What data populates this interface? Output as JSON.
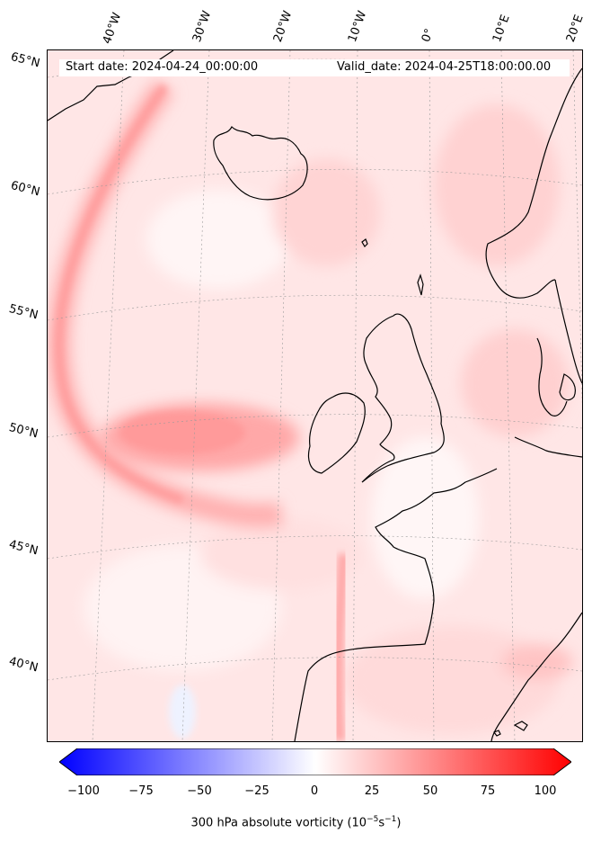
{
  "header": {
    "start_date": "Start date: 2024-04-24_00:00:00",
    "valid_date": "Valid_date: 2024-04-25T18:00:00.00"
  },
  "map": {
    "field": "300 hPa absolute vorticity",
    "longitude_labels": [
      "40°W",
      "30°W",
      "20°W",
      "10°W",
      "0°",
      "10°E",
      "20°E"
    ],
    "latitude_labels": [
      "65°N",
      "60°N",
      "55°N",
      "50°N",
      "45°N",
      "40°N"
    ],
    "colors": {
      "positive": "#ff0000",
      "negative": "#0000ff",
      "neutral": "#ffffff",
      "coastline": "#000000"
    }
  },
  "colorbar": {
    "ticks": [
      "−100",
      "−75",
      "−50",
      "−25",
      "0",
      "25",
      "50",
      "75",
      "100"
    ],
    "label_main": "300 hPa absolute vorticity (10",
    "label_exp1": "−5",
    "label_mid": "s",
    "label_exp2": "−1",
    "label_end": ")",
    "range": [
      -100,
      100
    ]
  }
}
